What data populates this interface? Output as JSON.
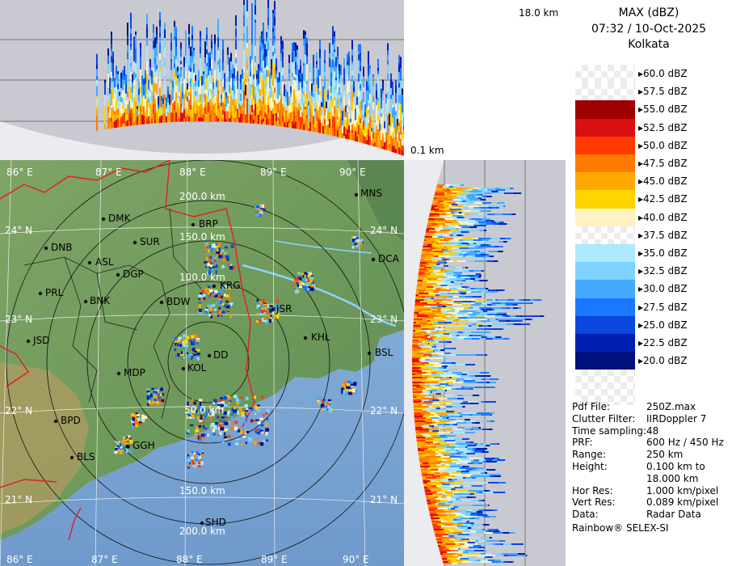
{
  "header": {
    "height_label": "18.0 km",
    "low_label": "0.1 km"
  },
  "legend": {
    "title": "MAX (dBZ)",
    "time": "07:32 / 10-Oct-2025",
    "station": "Kolkata",
    "levels": [
      {
        "label": "60.0 dBZ",
        "color": "#ffffff"
      },
      {
        "label": "57.5 dBZ",
        "color": "#ffffff"
      },
      {
        "label": "55.0 dBZ",
        "color": "#a00000"
      },
      {
        "label": "52.5 dBZ",
        "color": "#d81010"
      },
      {
        "label": "50.0 dBZ",
        "color": "#ff3a00"
      },
      {
        "label": "47.5 dBZ",
        "color": "#ff7a00"
      },
      {
        "label": "45.0 dBZ",
        "color": "#ffa800"
      },
      {
        "label": "42.5 dBZ",
        "color": "#ffd400"
      },
      {
        "label": "40.0 dBZ",
        "color": "#fdf2c0"
      },
      {
        "label": "37.5 dBZ",
        "color": "#ffffff"
      },
      {
        "label": "35.0 dBZ",
        "color": "#aee8ff"
      },
      {
        "label": "32.5 dBZ",
        "color": "#7fd2ff"
      },
      {
        "label": "30.0 dBZ",
        "color": "#45aaff"
      },
      {
        "label": "27.5 dBZ",
        "color": "#1a78ff"
      },
      {
        "label": "25.0 dBZ",
        "color": "#0a46e0"
      },
      {
        "label": "22.5 dBZ",
        "color": "#0020b4"
      },
      {
        "label": "20.0 dBZ",
        "color": "#00107c"
      }
    ]
  },
  "info": [
    {
      "key": "Pdf File:",
      "value": "250Z.max"
    },
    {
      "key": "Clutter Filter:",
      "value": "IIRDoppler 7"
    },
    {
      "key": "Time sampling:",
      "value": "48"
    },
    {
      "key": "PRF:",
      "value": "600 Hz / 450 Hz"
    },
    {
      "key": "Range:",
      "value": "250 km"
    },
    {
      "key": "Height:",
      "value": "0.100 km to"
    },
    {
      "key": "",
      "value": "18.000 km"
    },
    {
      "key": "Hor Res:",
      "value": "1.000 km/pixel"
    },
    {
      "key": "Vert Res:",
      "value": "0.089 km/pixel"
    },
    {
      "key": "Data:",
      "value": "Radar Data"
    }
  ],
  "footer": "Rainbow® SELEX-SI",
  "map": {
    "lon_labels_top": [
      "86° E",
      "87° E",
      "88° E",
      "89° E",
      "90° E"
    ],
    "lon_labels_bottom": [
      "86° E",
      "87° E",
      "88° E",
      "89° E",
      "90° E"
    ],
    "lat_labels": [
      "24° N",
      "23° N",
      "22° N",
      "21° N"
    ],
    "range_labels": [
      "200.0 km",
      "150.0 km",
      "100.0 km",
      "50.0 km",
      "50.0 km",
      "150.0 km",
      "200.0 km"
    ],
    "cities": [
      "MNS",
      "DMK",
      "BRP",
      "SUR",
      "DNB",
      "ASL",
      "DGP",
      "DCA",
      "PRL",
      "BNK",
      "BDW",
      "KRG",
      "JSR",
      "JSD",
      "KHL",
      "DD",
      "BSL",
      "MDP",
      "KOL",
      "BPD",
      "GGH",
      "BLS",
      "SHD"
    ]
  }
}
